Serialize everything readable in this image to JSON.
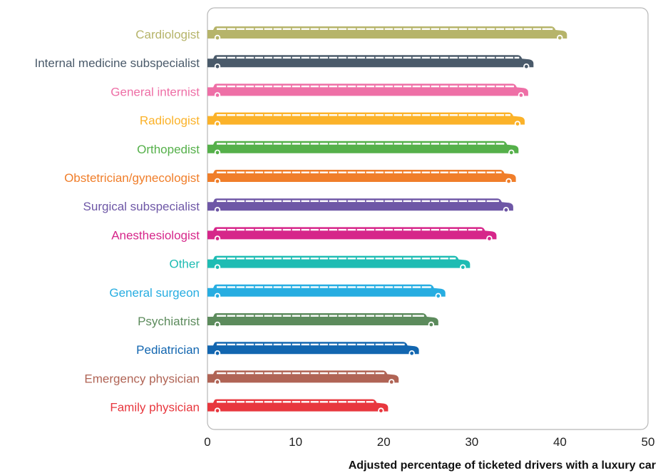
{
  "chart_data": {
    "type": "bar",
    "orientation": "horizontal",
    "categories": [
      "Cardiologist",
      "Internal medicine subspecialist",
      "General internist",
      "Radiologist",
      "Orthopedist",
      "Obstetrician/gynecologist",
      "Surgical subspecialist",
      "Anesthesiologist",
      "Other",
      "General surgeon",
      "Psychiatrist",
      "Pediatrician",
      "Emergency physician",
      "Family physician"
    ],
    "values": [
      40.8,
      37.0,
      36.4,
      36.0,
      35.3,
      35.0,
      34.7,
      32.8,
      29.8,
      27.0,
      26.2,
      24.0,
      21.7,
      20.5
    ],
    "colors": [
      "#b6b46a",
      "#4a5a6a",
      "#ee6fa6",
      "#fbb229",
      "#55b04a",
      "#f07e2a",
      "#6e57a6",
      "#d6268a",
      "#1ebcb3",
      "#27ade1",
      "#5c8b5c",
      "#1266b0",
      "#b06455",
      "#e8373e"
    ],
    "xlabel": "Adjusted percentage of ticketed drivers with a luxury car",
    "ylabel": "",
    "xlim": [
      0,
      50
    ],
    "xticks": [
      "0",
      "10",
      "20",
      "30",
      "40",
      "50"
    ],
    "grid": false,
    "bar_style": "limousine"
  }
}
